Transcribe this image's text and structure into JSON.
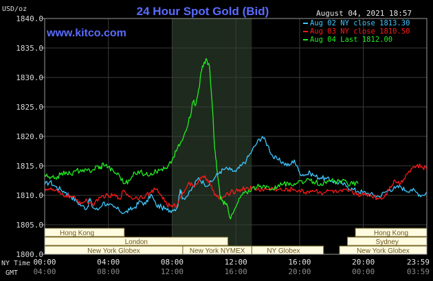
{
  "chart_data": {
    "type": "line",
    "title": "24 Hour Spot Gold (Bid)",
    "watermark": "www.kitco.com",
    "unit_label": "USD/oz",
    "timestamp": "August 04, 2021 18:57",
    "ylim": [
      1800,
      1840
    ],
    "y_ticks": [
      "1840.0",
      "1835.0",
      "1830.0",
      "1825.0",
      "1820.0",
      "1815.0",
      "1810.0",
      "1805.0",
      "1800.0"
    ],
    "y_tick_values": [
      1840,
      1835,
      1830,
      1825,
      1820,
      1815,
      1810,
      1805,
      1800
    ],
    "xlim": [
      0,
      1439
    ],
    "x_row_labels": [
      "NY Time",
      "GMT"
    ],
    "x_ticks_ny": [
      "00:00",
      "04:00",
      "08:00",
      "12:00",
      "16:00",
      "20:00",
      "23:59"
    ],
    "x_ticks_gmt": [
      "04:00",
      "08:00",
      "12:00",
      "16:00",
      "20:00",
      "00:00",
      "03:59"
    ],
    "x_tick_minutes": [
      0,
      240,
      480,
      720,
      960,
      1200,
      1439
    ],
    "highlight_range_minutes": [
      480,
      780
    ],
    "sessions": [
      {
        "name": "Hong Kong",
        "start": 0,
        "end": 300,
        "row": 0,
        "align": "left"
      },
      {
        "name": "London",
        "start": 0,
        "end": 690,
        "row": 1,
        "align": "center"
      },
      {
        "name": "New York Globex",
        "start": 0,
        "end": 520,
        "row": 2,
        "align": "center"
      },
      {
        "name": "New York NYMEX",
        "start": 520,
        "end": 780,
        "row": 2,
        "align": "center"
      },
      {
        "name": "NY Globex",
        "start": 780,
        "end": 1050,
        "row": 2,
        "align": "left"
      },
      {
        "name": "Hong Kong",
        "start": 1170,
        "end": 1439,
        "row": 0,
        "align": "center"
      },
      {
        "name": "Sydney",
        "start": 1140,
        "end": 1439,
        "row": 1,
        "align": "center"
      },
      {
        "name": "New York Globex",
        "start": 1110,
        "end": 1439,
        "row": 2,
        "align": "center"
      }
    ],
    "legend_position": "top-right",
    "series": [
      {
        "name": "Aug 02 NY close 1813.30",
        "color": "#3fc8ff",
        "x": [
          0,
          20,
          40,
          60,
          80,
          100,
          120,
          140,
          160,
          170,
          180,
          200,
          220,
          240,
          260,
          280,
          300,
          320,
          340,
          360,
          380,
          400,
          420,
          440,
          460,
          480,
          500,
          510,
          520,
          540,
          560,
          580,
          600,
          620,
          640,
          660,
          680,
          700,
          720,
          740,
          760,
          780,
          800,
          820,
          840,
          860,
          880,
          900,
          920,
          940,
          960,
          980,
          1000,
          1020,
          1040,
          1060,
          1080,
          1100,
          1120,
          1140,
          1160,
          1180,
          1200,
          1220,
          1240,
          1260,
          1280,
          1300,
          1320,
          1340,
          1360,
          1380,
          1400,
          1420,
          1439
        ],
        "values": [
          1811.8,
          1812.3,
          1811.5,
          1811.0,
          1810.5,
          1809.8,
          1809.0,
          1808.2,
          1807.8,
          1809.5,
          1808.0,
          1807.5,
          1808.8,
          1808.3,
          1808.0,
          1807.5,
          1807.0,
          1807.5,
          1808.0,
          1809.0,
          1808.5,
          1810.2,
          1808.3,
          1808.0,
          1807.5,
          1807.5,
          1808.0,
          1811.0,
          1809.5,
          1810.0,
          1811.5,
          1813.0,
          1812.0,
          1811.8,
          1813.0,
          1814.0,
          1814.5,
          1814.3,
          1814.0,
          1815.0,
          1816.0,
          1817.5,
          1819.0,
          1820.0,
          1818.5,
          1816.5,
          1816.0,
          1815.5,
          1815.0,
          1816.0,
          1813.8,
          1813.5,
          1813.8,
          1813.2,
          1813.0,
          1812.8,
          1812.5,
          1812.2,
          1812.0,
          1811.5,
          1811.0,
          1810.7,
          1810.5,
          1810.3,
          1810.0,
          1809.8,
          1810.5,
          1811.0,
          1811.2,
          1811.5,
          1810.8,
          1811.0,
          1810.5,
          1810.0,
          1810.5
        ]
      },
      {
        "name": "Aug 03 NY close 1810.50",
        "color": "#ff1a1a",
        "x": [
          0,
          20,
          40,
          60,
          80,
          100,
          120,
          140,
          160,
          180,
          200,
          220,
          240,
          260,
          280,
          300,
          320,
          340,
          360,
          380,
          400,
          420,
          440,
          460,
          480,
          500,
          520,
          540,
          560,
          580,
          600,
          620,
          640,
          660,
          680,
          700,
          720,
          740,
          760,
          780,
          800,
          820,
          840,
          860,
          880,
          900,
          920,
          940,
          960,
          980,
          1000,
          1020,
          1040,
          1060,
          1080,
          1100,
          1120,
          1140,
          1160,
          1180,
          1200,
          1220,
          1240,
          1260,
          1280,
          1300,
          1320,
          1340,
          1360,
          1380,
          1400,
          1420,
          1439
        ],
        "values": [
          1811.2,
          1811.0,
          1810.8,
          1810.2,
          1810.0,
          1809.8,
          1809.2,
          1808.8,
          1809.0,
          1808.5,
          1809.0,
          1810.0,
          1809.8,
          1810.0,
          1809.5,
          1810.8,
          1809.8,
          1809.5,
          1809.8,
          1810.0,
          1810.5,
          1811.0,
          1810.0,
          1808.5,
          1808.0,
          1808.5,
          1810.5,
          1812.0,
          1811.5,
          1812.5,
          1813.0,
          1812.5,
          1810.0,
          1809.5,
          1809.8,
          1810.5,
          1810.8,
          1811.0,
          1811.3,
          1811.2,
          1811.0,
          1811.0,
          1811.0,
          1811.2,
          1811.0,
          1810.8,
          1811.0,
          1811.0,
          1810.8,
          1810.5,
          1810.8,
          1810.8,
          1810.5,
          1810.6,
          1810.8,
          1810.5,
          1810.6,
          1810.8,
          1810.5,
          1810.3,
          1810.0,
          1810.2,
          1809.8,
          1809.5,
          1809.8,
          1811.5,
          1812.5,
          1812.0,
          1813.5,
          1814.5,
          1815.0,
          1814.8,
          1814.5
        ]
      },
      {
        "name": "Aug 04 Last 1812.00",
        "color": "#22ee22",
        "x": [
          0,
          20,
          40,
          60,
          80,
          100,
          120,
          140,
          160,
          180,
          200,
          210,
          220,
          240,
          260,
          280,
          300,
          320,
          340,
          360,
          380,
          400,
          420,
          440,
          460,
          480,
          500,
          520,
          540,
          560,
          570,
          580,
          590,
          600,
          610,
          620,
          630,
          640,
          650,
          660,
          670,
          680,
          690,
          700,
          720,
          740,
          760,
          780,
          800,
          820,
          840,
          860,
          880,
          900,
          920,
          940,
          960,
          980,
          1000,
          1020,
          1040,
          1060,
          1080,
          1100,
          1120,
          1140,
          1160,
          1180
        ],
        "values": [
          1813.5,
          1812.8,
          1813.0,
          1813.5,
          1814.0,
          1813.5,
          1814.3,
          1814.0,
          1814.2,
          1814.3,
          1815.0,
          1814.5,
          1815.5,
          1814.8,
          1814.0,
          1813.5,
          1812.0,
          1812.5,
          1813.8,
          1814.0,
          1813.5,
          1813.8,
          1814.0,
          1814.5,
          1814.5,
          1816.0,
          1818.0,
          1819.5,
          1822.0,
          1826.0,
          1825.5,
          1828.0,
          1831.0,
          1832.5,
          1833.0,
          1832.0,
          1826.0,
          1818.0,
          1814.0,
          1810.0,
          1809.0,
          1808.5,
          1808.0,
          1806.0,
          1808.0,
          1810.0,
          1810.5,
          1811.2,
          1811.5,
          1811.3,
          1811.5,
          1811.0,
          1811.8,
          1812.0,
          1811.7,
          1812.0,
          1812.5,
          1812.3,
          1812.5,
          1812.2,
          1812.0,
          1812.0,
          1812.5,
          1812.2,
          1812.5,
          1812.0,
          1811.9,
          1812.0
        ]
      }
    ]
  }
}
